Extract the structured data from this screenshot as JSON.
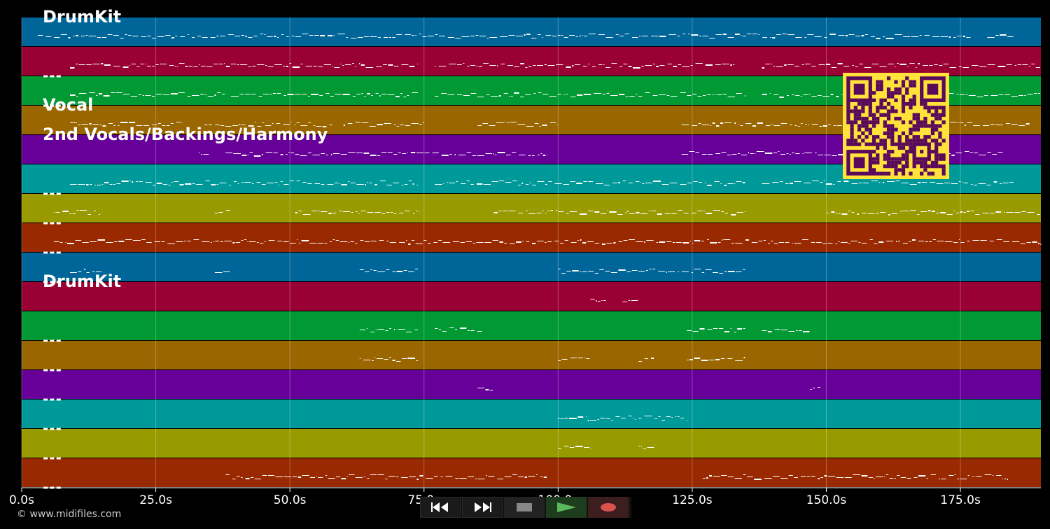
{
  "axis": {
    "unit_suffix": "s",
    "ticks": [
      "0.0s",
      "25.0s",
      "50.0s",
      "75.0s",
      "100.0s",
      "125.0s",
      "150.0s",
      "175.0s"
    ],
    "tick_values": [
      0,
      25,
      50,
      75,
      100,
      125,
      150,
      175
    ],
    "range": [
      0,
      190
    ]
  },
  "tracks": [
    {
      "label": "DrumKit",
      "color": "#006699"
    },
    {
      "label": "---",
      "color": "#990033"
    },
    {
      "label": "---",
      "color": "#009933"
    },
    {
      "label": "Vocal",
      "color": "#996600"
    },
    {
      "label": "2nd Vocals/Backings/Harmony",
      "color": "#660099"
    },
    {
      "label": "---",
      "color": "#009999"
    },
    {
      "label": "---",
      "color": "#999900"
    },
    {
      "label": "---",
      "color": "#992900"
    },
    {
      "label": "---",
      "color": "#006699"
    },
    {
      "label": "DrumKit",
      "color": "#990033"
    },
    {
      "label": "---",
      "color": "#009933"
    },
    {
      "label": "---",
      "color": "#996600"
    },
    {
      "label": "---",
      "color": "#660099"
    },
    {
      "label": "---",
      "color": "#009999"
    },
    {
      "label": "---",
      "color": "#999900"
    },
    {
      "label": "---",
      "color": "#992900"
    }
  ],
  "note_segments": [
    [
      [
        3,
        177
      ],
      [
        180,
        185
      ]
    ],
    [
      [
        9,
        74
      ],
      [
        77,
        133
      ],
      [
        138,
        190
      ]
    ],
    [
      [
        9,
        38
      ],
      [
        39,
        74
      ],
      [
        77,
        135
      ],
      [
        138,
        190
      ]
    ],
    [
      [
        9,
        30
      ],
      [
        34,
        58
      ],
      [
        60,
        75
      ],
      [
        85,
        100
      ],
      [
        123,
        188
      ]
    ],
    [
      [
        33,
        35
      ],
      [
        38,
        98
      ],
      [
        123,
        183
      ]
    ],
    [
      [
        9,
        74
      ],
      [
        77,
        135
      ],
      [
        138,
        185
      ]
    ],
    [
      [
        6,
        15
      ],
      [
        36,
        39
      ],
      [
        51,
        74
      ],
      [
        88,
        135
      ],
      [
        150,
        190
      ]
    ],
    [
      [
        6,
        190
      ]
    ],
    [
      [
        9,
        15
      ],
      [
        36,
        39
      ],
      [
        63,
        74
      ],
      [
        100,
        135
      ]
    ],
    [
      [
        106,
        109
      ],
      [
        112,
        115
      ]
    ],
    [
      [
        63,
        74
      ],
      [
        77,
        86
      ],
      [
        124,
        135
      ],
      [
        138,
        147
      ]
    ],
    [
      [
        63,
        74
      ],
      [
        100,
        106
      ],
      [
        115,
        118
      ],
      [
        124,
        135
      ]
    ],
    [
      [
        85,
        88
      ],
      [
        147,
        149
      ]
    ],
    [
      [
        100,
        124
      ]
    ],
    [
      [
        100,
        106
      ],
      [
        115,
        118
      ]
    ],
    [
      [
        38,
        98
      ],
      [
        127,
        184
      ]
    ]
  ],
  "transport": {
    "rewind_icon": "rewind-icon",
    "fast_forward_icon": "fast-forward-icon",
    "stop_icon": "stop-icon",
    "play_icon": "play-icon",
    "record_icon": "record-icon",
    "colors": {
      "play": "#5cb85c",
      "record": "#d9534f",
      "stop": "#888888"
    }
  },
  "copyright": "© www.midifiles.com",
  "qr_code": {
    "icon": "qr-code-icon",
    "fg": "#5a0a5a",
    "bg": "#ffe33a"
  }
}
